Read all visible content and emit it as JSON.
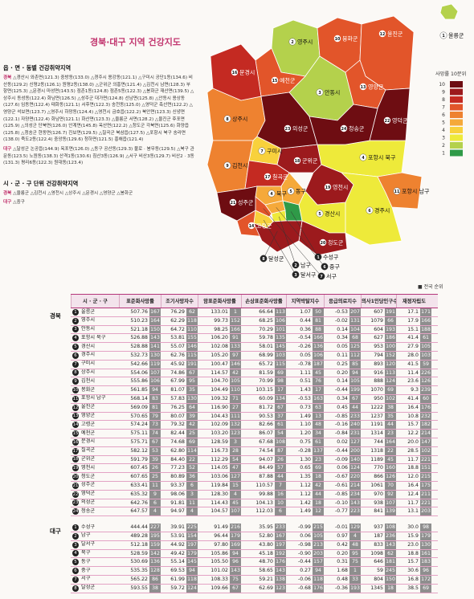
{
  "title": "경북·대구 지역 건강지도",
  "left": {
    "section1": {
      "title": "읍 · 면 · 동별 건강취약지역",
      "items": [
        {
          "region": "경북",
          "text": "△경산시 와촌면(121.3) 중방동(133.0) △경주시 용강동(121.1) △구미시 공단1동(134.6) 비산동(129.2) 신평2동(126.1) 원평2동(138.0) △군위군 의흥면(121.4) △김천시 남면(128.3) 부항면(125.3) △문경시 마성면(143.5) 점촌1동(124.8) 점촌5동(122.3) △봉화군 재산면(139.5) △상주시 동성동(122.4) 화남면(126.5) △성주군 대가면(124.8) 선남면(125.8) △안동시 용상동(127.6) 임동면(122.4) 태화동(121.1) 서후면(122.3) 송천동(125.0) △영덕군 축산면(122.2) △영양군 석보면(123.7) △영주시 하망동(124.4) △영천시 금호읍(122.2) 북안면(123.3) 신녕면(122.1) 자양면(122.4) 화남면(121.1) 화산면(123.3) △울릉군 서면(128.2) △울진군 후포면(125.9) △의성군 단북면(126.0) 안계면(145.8) 옥산면(122.2) △청도군 각북면(125.6) 화양읍(125.8) △청송군 현동면(126.7) 진보면(129.5) △칠곡군 북삼읍(127.5) △포항시 북구 송라면(138.0) 죽도2동(122.4) 중앙동(129.6) 청하면(121.5) 흥해읍(121.4)"
        },
        {
          "region": "대구",
          "text": "△달성군 논공읍(144.9) 옥포면(126.0) △동구 공산동(129.3) 불로 · 봉무동(129.5) △북구 관문동(123.5) 노원동(138.3) 산격1동(130.6) 침산3동(126.9) △서구 비산3동(129.7) 비산2 · 3동(131.3) 평리6동(122.3) 원대동(123.4)"
        }
      ]
    },
    "section2": {
      "title": "시 · 군 · 구 단위 건강취약지역",
      "items": [
        {
          "region": "경북",
          "text": "△울릉군 △김천시 △영천시 △상주시 △문경시 △영양군 △봉화군"
        },
        {
          "region": "대구",
          "text": "△중구"
        }
      ]
    }
  },
  "map": {
    "legend": {
      "title": "사망률 10분위",
      "levels": [
        {
          "label": "10",
          "color": "#6e0d12"
        },
        {
          "label": "9",
          "color": "#9c1a1d"
        },
        {
          "label": "8",
          "color": "#c42a22"
        },
        {
          "label": "7",
          "color": "#e2552a"
        },
        {
          "label": "6",
          "color": "#ee8230"
        },
        {
          "label": "5",
          "color": "#f5a93a"
        },
        {
          "label": "4",
          "color": "#f8d13c"
        },
        {
          "label": "3",
          "color": "#eeea3a"
        },
        {
          "label": "2",
          "color": "#b4d14c"
        },
        {
          "label": "1",
          "color": "#2f9a48"
        }
      ]
    },
    "regions": [
      {
        "num": "1",
        "name": "울릉군",
        "decile": 2
      },
      {
        "num": "2",
        "name": "영주시",
        "decile": 2
      },
      {
        "num": "3",
        "name": "안동시",
        "decile": 2
      },
      {
        "num": "4",
        "name": "포항시 북구",
        "decile": 3
      },
      {
        "num": "5",
        "name": "경산시",
        "decile": 3
      },
      {
        "num": "6",
        "name": "경주시",
        "decile": 3
      },
      {
        "num": "7",
        "name": "구미시",
        "decile": 4
      },
      {
        "num": "8",
        "name": "상주시",
        "decile": 6
      },
      {
        "num": "9",
        "name": "김천시",
        "decile": 6
      },
      {
        "num": "10",
        "name": "봉화군",
        "decile": 7
      },
      {
        "num": "11",
        "name": "포항시 남구",
        "decile": 6
      },
      {
        "num": "12",
        "name": "울진군",
        "decile": 7
      },
      {
        "num": "13",
        "name": "영양군",
        "decile": 7
      },
      {
        "num": "14",
        "name": "고령군",
        "decile": 7
      },
      {
        "num": "15",
        "name": "예천군",
        "decile": 7
      },
      {
        "num": "16",
        "name": "문경시",
        "decile": 8
      },
      {
        "num": "17",
        "name": "칠곡군",
        "decile": 8
      },
      {
        "num": "18",
        "name": "군위군",
        "decile": 9
      },
      {
        "num": "19",
        "name": "영천시",
        "decile": 9
      },
      {
        "num": "20",
        "name": "청도군",
        "decile": 9
      },
      {
        "num": "21",
        "name": "성주군",
        "decile": 10
      },
      {
        "num": "22",
        "name": "영덕군",
        "decile": 10
      },
      {
        "num": "23",
        "name": "의성군",
        "decile": 10
      },
      {
        "num": "24",
        "name": "청송군",
        "decile": 10
      },
      {
        "num": "1",
        "name": "수성구",
        "decile": 1
      },
      {
        "num": "2",
        "name": "남구",
        "decile": 3
      },
      {
        "num": "3",
        "name": "달서구",
        "decile": 4
      },
      {
        "num": "4",
        "name": "북구",
        "decile": 5
      },
      {
        "num": "5",
        "name": "동구",
        "decile": 5
      },
      {
        "num": "6",
        "name": "중구",
        "decile": 5
      },
      {
        "num": "7",
        "name": "서구",
        "decile": 7
      },
      {
        "num": "8",
        "name": "달성군",
        "decile": 9
      }
    ]
  },
  "table": {
    "note": "■ 전국 순위",
    "headers": [
      "시 · 군 · 구",
      "표준화사망률",
      "조기사망자수",
      "암표준화사망률",
      "손상표준화사망률",
      "지역박탈지수",
      "응급의료지수",
      "의사1인당인구수",
      "재정자립도"
    ],
    "groups": [
      {
        "name": "경북",
        "rows": [
          {
            "num": "1",
            "name": "울릉군",
            "cells": [
              "507.76",
              "167",
              "76.29",
              "62",
              "133.01",
              "1",
              "66.64",
              "113",
              "1.07",
              "50",
              "-0.53",
              "207",
              "607",
              "191",
              "17.1",
              "171"
            ]
          },
          {
            "num": "2",
            "name": "영주시",
            "cells": [
              "510.23",
              "164",
              "62.29",
              "118",
              "99.73",
              "152",
              "68.25",
              "106",
              "0.44",
              "81",
              "-0.02",
              "131",
              "1079",
              "66",
              "17.9",
              "166"
            ]
          },
          {
            "num": "3",
            "name": "안동시",
            "cells": [
              "521.18",
              "150",
              "64.72",
              "110",
              "98.25",
              "166",
              "70.29",
              "101",
              "0.36",
              "88",
              "0.14",
              "104",
              "604",
              "193",
              "15.1",
              "188"
            ]
          },
          {
            "num": "4",
            "name": "포항시 북구",
            "cells": [
              "526.88",
              "143",
              "53.81",
              "155",
              "106.20",
              "91",
              "59.78",
              "135",
              "-0.54",
              "166",
              "0.34",
              "68",
              "627",
              "186",
              "41.4",
              "61"
            ]
          },
          {
            "num": "5",
            "name": "경산시",
            "cells": [
              "528.88",
              "141",
              "55.07",
              "146",
              "102.08",
              "133",
              "58.01",
              "145",
              "-0.26",
              "136",
              "0.05",
              "125",
              "953",
              "100",
              "27.9",
              "105"
            ]
          },
          {
            "num": "6",
            "name": "경주시",
            "cells": [
              "532.73",
              "130",
              "62.76",
              "115",
              "105.20",
              "97",
              "68.99",
              "103",
              "0.05",
              "106",
              "0.11",
              "112",
              "794",
              "152",
              "28.0",
              "103"
            ]
          },
          {
            "num": "7",
            "name": "구미시",
            "cells": [
              "542.66",
              "119",
              "45.92",
              "191",
              "100.47",
              "146",
              "65.72",
              "115",
              "-0.78",
              "187",
              "0.25",
              "85",
              "893",
              "120",
              "41.5",
              "59"
            ]
          },
          {
            "num": "8",
            "name": "상주시",
            "cells": [
              "554.06",
              "107",
              "74.86",
              "67",
              "114.57",
              "42",
              "81.59",
              "69",
              "1.11",
              "45",
              "0.20",
              "94",
              "916",
              "113",
              "11.4",
              "226"
            ]
          },
          {
            "num": "9",
            "name": "김천시",
            "cells": [
              "555.86",
              "106",
              "67.99",
              "95",
              "104.70",
              "105",
              "70.99",
              "98",
              "0.51",
              "76",
              "0.14",
              "105",
              "888",
              "124",
              "23.6",
              "126"
            ]
          },
          {
            "num": "10",
            "name": "봉화군",
            "cells": [
              "561.85",
              "94",
              "81.07",
              "35",
              "104.49",
              "110",
              "103.15",
              "17",
              "1.43",
              "17",
              "-0.44",
              "199",
              "1070",
              "69",
              "9.3",
              "239"
            ]
          },
          {
            "num": "11",
            "name": "포항시 남구",
            "cells": [
              "568.14",
              "83",
              "57.83",
              "130",
              "109.32",
              "71",
              "60.09",
              "134",
              "-0.53",
              "163",
              "0.34",
              "67",
              "950",
              "102",
              "41.4",
              "60"
            ]
          },
          {
            "num": "12",
            "name": "울진군",
            "cells": [
              "569.09",
              "81",
              "76.25",
              "64",
              "116.90",
              "27",
              "81.72",
              "67",
              "0.73",
              "63",
              "0.45",
              "44",
              "1222",
              "38",
              "16.4",
              "176"
            ]
          },
          {
            "num": "13",
            "name": "영양군",
            "cells": [
              "570.65",
              "79",
              "80.07",
              "39",
              "104.43",
              "111",
              "90.53",
              "37",
              "1.49",
              "13",
              "-0.85",
              "233",
              "1237",
              "35",
              "10.8",
              "232"
            ]
          },
          {
            "num": "14",
            "name": "고령군",
            "cells": [
              "574.24",
              "73",
              "79.32",
              "42",
              "102.09",
              "132",
              "82.66",
              "61",
              "1.10",
              "48",
              "-0.16",
              "240",
              "1191",
              "44",
              "15.7",
              "182"
            ]
          },
          {
            "num": "15",
            "name": "예천군",
            "cells": [
              "575.11",
              "74",
              "82.44",
              "25",
              "103.20",
              "123",
              "86.07",
              "54",
              "1.20",
              "34",
              "-0.84",
              "231",
              "1314",
              "23",
              "12.2",
              "214"
            ]
          },
          {
            "num": "16",
            "name": "문경시",
            "cells": [
              "575.71",
              "67",
              "74.68",
              "69",
              "128.59",
              "3",
              "67.68",
              "108",
              "0.75",
              "61",
              "0.02",
              "127",
              "744",
              "164",
              "20.0",
              "147"
            ]
          },
          {
            "num": "17",
            "name": "칠곡군",
            "cells": [
              "582.12",
              "53",
              "62.80",
              "114",
              "116.73",
              "28",
              "74.54",
              "87",
              "-0.28",
              "137",
              "-0.44",
              "200",
              "1318",
              "22",
              "28.5",
              "102"
            ]
          },
          {
            "num": "18",
            "name": "군위군",
            "cells": [
              "591.79",
              "39",
              "84.40",
              "22",
              "112.29",
              "54",
              "94.07",
              "26",
              "1.30",
              "23",
              "-0.09",
              "140",
              "1189",
              "45",
              "11.7",
              "221"
            ]
          },
          {
            "num": "19",
            "name": "영천시",
            "cells": [
              "607.45",
              "26",
              "77.23",
              "52",
              "114.05",
              "47",
              "84.49",
              "57",
              "0.65",
              "69",
              "0.06",
              "124",
              "770",
              "160",
              "18.8",
              "151"
            ]
          },
          {
            "num": "20",
            "name": "청도군",
            "cells": [
              "607.65",
              "25",
              "80.89",
              "36",
              "103.06",
              "127",
              "87.88",
              "44",
              "1.35",
              "18",
              "-0.67",
              "220",
              "866",
              "126",
              "12.0",
              "215"
            ]
          },
          {
            "num": "21",
            "name": "성주군",
            "cells": [
              "633.41",
              "11",
              "93.37",
              "6",
              "119.84",
              "15",
              "110.57",
              "7",
              "1.12",
              "42",
              "-0.61",
              "214",
              "1061",
              "70",
              "16.4",
              "175"
            ]
          },
          {
            "num": "22",
            "name": "영덕군",
            "cells": [
              "635.32",
              "9",
              "98.06",
              "3",
              "128.30",
              "4",
              "99.88",
              "16",
              "1.12",
              "44",
              "-0.85",
              "234",
              "970",
              "92",
              "12.4",
              "211"
            ]
          },
          {
            "num": "23",
            "name": "의성군",
            "cells": [
              "642.76",
              "6",
              "91.81",
              "11",
              "114.43",
              "45",
              "104.13",
              "10",
              "1.42",
              "18",
              "-0.10",
              "143",
              "938",
              "107",
              "11.7",
              "221"
            ]
          },
          {
            "num": "24",
            "name": "청송군",
            "cells": [
              "647.57",
              "4",
              "94.97",
              "4",
              "104.57",
              "107",
              "112.03",
              "6",
              "1.49",
              "12",
              "-0.77",
              "223",
              "841",
              "139",
              "13.1",
              "203"
            ]
          }
        ]
      },
      {
        "name": "대구",
        "rows": [
          {
            "num": "1",
            "name": "수성구",
            "cells": [
              "444.44",
              "227",
              "39.91",
              "225",
              "91.49",
              "216",
              "35.95",
              "233",
              "-0.99",
              "215",
              "-0.01",
              "129",
              "937",
              "108",
              "30.0",
              "98"
            ]
          },
          {
            "num": "2",
            "name": "남구",
            "cells": [
              "489.28",
              "195",
              "53.91",
              "154",
              "96.44",
              "179",
              "52.80",
              "167",
              "0.06",
              "105",
              "0.97",
              "4",
              "187",
              "236",
              "15.9",
              "179"
            ]
          },
          {
            "num": "3",
            "name": "달서구",
            "cells": [
              "512.18",
              "159",
              "44.92",
              "197",
              "97.80",
              "169",
              "43.80",
              "197",
              "-0.98",
              "213",
              "0.42",
              "48",
              "833",
              "143",
              "23.0",
              "130"
            ]
          },
          {
            "num": "4",
            "name": "북구",
            "cells": [
              "528.59",
              "142",
              "49.42",
              "179",
              "105.86",
              "94",
              "45.18",
              "192",
              "-0.90",
              "203",
              "0.20",
              "95",
              "1098",
              "62",
              "18.8",
              "161"
            ]
          },
          {
            "num": "5",
            "name": "동구",
            "cells": [
              "530.69",
              "136",
              "55.14",
              "145",
              "105.50",
              "96",
              "48.70",
              "176",
              "-0.44",
              "157",
              "0.31",
              "75",
              "646",
              "181",
              "15.7",
              "183"
            ]
          },
          {
            "num": "6",
            "name": "중구",
            "cells": [
              "535.35",
              "128",
              "69.53",
              "94",
              "101.02",
              "143",
              "58.65",
              "143",
              "0.27",
              "94",
              "1.68",
              "1",
              "59",
              "245",
              "30.6",
              "96"
            ]
          },
          {
            "num": "7",
            "name": "서구",
            "cells": [
              "565.22",
              "86",
              "61.99",
              "118",
              "108.33",
              "75",
              "59.21",
              "138",
              "-0.06",
              "118",
              "0.48",
              "33",
              "804",
              "150",
              "16.8",
              "172"
            ]
          },
          {
            "num": "8",
            "name": "달성군",
            "cells": [
              "593.55",
              "38",
              "59.72",
              "124",
              "109.66",
              "67",
              "62.69",
              "123",
              "-0.68",
              "176",
              "-0.36",
              "193",
              "1345",
              "18",
              "38.5",
              "69"
            ]
          }
        ]
      }
    ]
  }
}
